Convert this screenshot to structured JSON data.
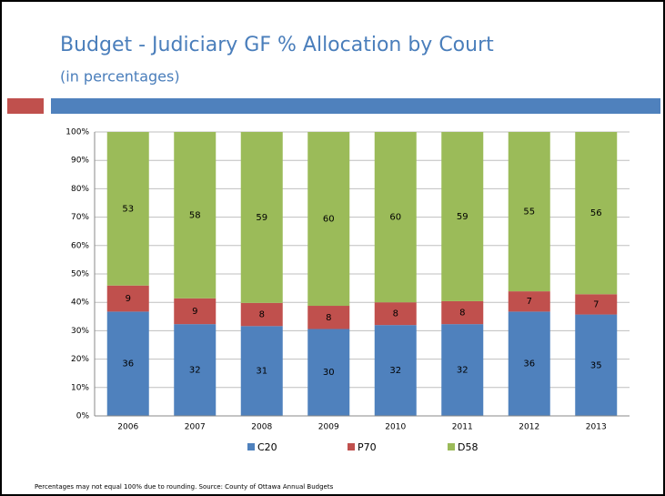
{
  "chart_data": {
    "type": "percent_stacked_bar",
    "title": "Budget - Judiciary GF % Allocation by Court",
    "subtitle": "(in percentages)",
    "categories": [
      "2006",
      "2007",
      "2008",
      "2009",
      "2010",
      "2011",
      "2012",
      "2013"
    ],
    "series": [
      {
        "name": "C20",
        "color": "#4f81bd",
        "values": [
          36,
          32,
          31,
          30,
          32,
          32,
          36,
          35
        ]
      },
      {
        "name": "P70",
        "color": "#c0504d",
        "values": [
          9,
          9,
          8,
          8,
          8,
          8,
          7,
          7
        ]
      },
      {
        "name": "D58",
        "color": "#9bbb59",
        "values": [
          53,
          58,
          59,
          60,
          60,
          59,
          55,
          56
        ]
      }
    ],
    "ylim": [
      0,
      100
    ],
    "yticks": [
      {
        "value": 0,
        "label": "0%"
      },
      {
        "value": 10,
        "label": "10%"
      },
      {
        "value": 20,
        "label": "20%"
      },
      {
        "value": 30,
        "label": "30%"
      },
      {
        "value": 40,
        "label": "40%"
      },
      {
        "value": 50,
        "label": "50%"
      },
      {
        "value": 60,
        "label": "60%"
      },
      {
        "value": 70,
        "label": "70%"
      },
      {
        "value": 80,
        "label": "80%"
      },
      {
        "value": 90,
        "label": "90%"
      },
      {
        "value": 100,
        "label": "100%"
      }
    ],
    "grid": true,
    "legend": "bottom",
    "footnote": "Percentages may not equal 100% due to rounding.  Source:  County of Ottawa Annual Budgets"
  }
}
